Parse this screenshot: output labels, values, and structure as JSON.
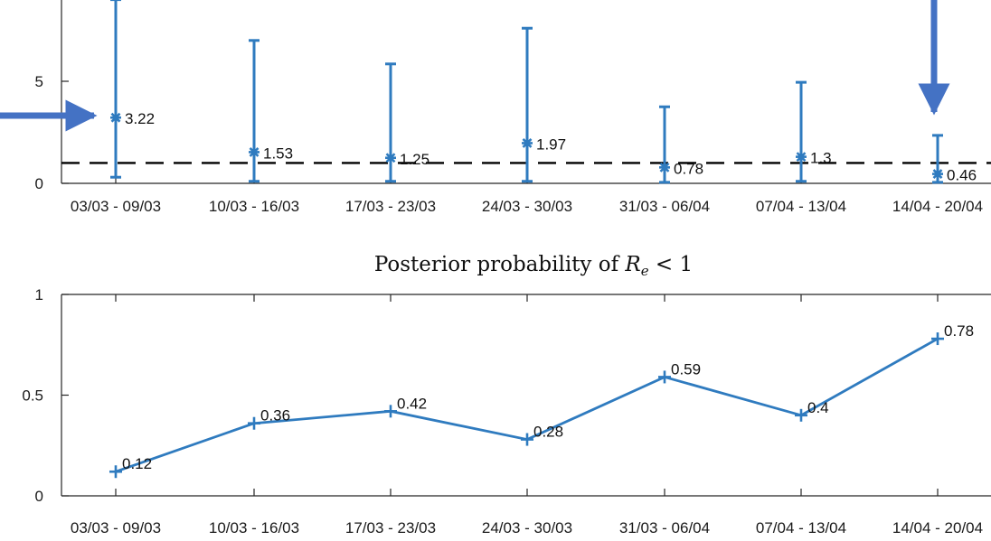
{
  "colors": {
    "series": "#2f7bbf",
    "axis": "#262626",
    "arrow": "#4472c4",
    "threshold": "#000000"
  },
  "chart_data": [
    {
      "type": "errorbar",
      "title": "",
      "categories": [
        "03/03 - 09/03",
        "10/03 - 16/03",
        "17/03 - 23/03",
        "24/03 - 30/03",
        "31/03 - 06/04",
        "07/04 - 13/04",
        "14/04 - 20/04"
      ],
      "series": [
        {
          "values": [
            3.22,
            1.53,
            1.25,
            1.97,
            0.78,
            1.3,
            0.46
          ],
          "value_labels": [
            "3.22",
            "1.53",
            "1.25",
            "1.97",
            "0.78",
            "1.3",
            "0.46"
          ],
          "lower": [
            0.3,
            0.1,
            0.1,
            0.1,
            0.05,
            0.1,
            0.05
          ],
          "upper": [
            9.0,
            7.0,
            5.85,
            7.6,
            3.75,
            4.95,
            2.35
          ]
        }
      ],
      "threshold": 1,
      "ylim": [
        0,
        8.6
      ],
      "yticks": [
        "0",
        "5"
      ],
      "ytick_values": [
        0,
        5
      ],
      "annotations": {
        "arrows": [
          "first-week-estimate",
          "last-week-estimate"
        ]
      }
    },
    {
      "type": "line",
      "title_prefix": "Posterior probability of ",
      "title_math_var": "R",
      "title_math_sub": "e",
      "title_math_rest": " < 1",
      "categories": [
        "03/03 - 09/03",
        "10/03 - 16/03",
        "17/03 - 23/03",
        "24/03 - 30/03",
        "31/03 - 06/04",
        "07/04 - 13/04",
        "14/04 - 20/04"
      ],
      "series": [
        {
          "values": [
            0.12,
            0.36,
            0.42,
            0.28,
            0.59,
            0.4,
            0.78
          ],
          "value_labels": [
            "0.12",
            "0.36",
            "0.42",
            "0.28",
            "0.59",
            "0.4",
            "0.78"
          ]
        }
      ],
      "ylim": [
        0,
        1
      ],
      "yticks": [
        "0",
        "0.5",
        "1"
      ],
      "ytick_values": [
        0,
        0.5,
        1
      ]
    }
  ]
}
